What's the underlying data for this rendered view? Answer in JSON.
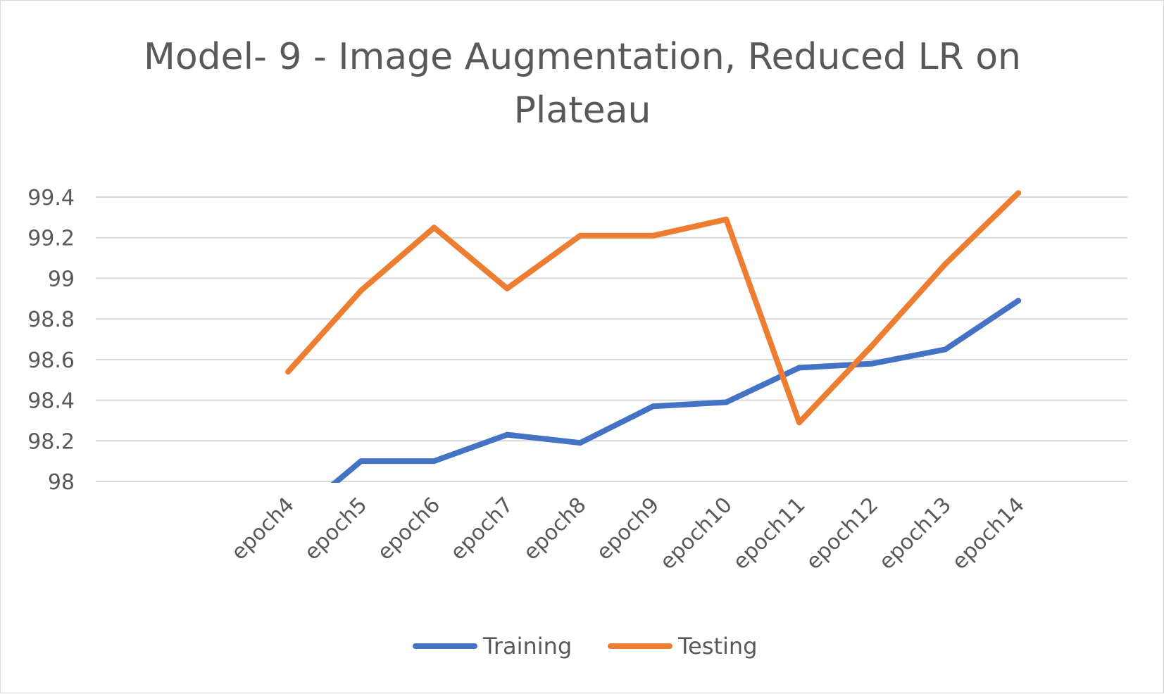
{
  "chart_data": {
    "type": "line",
    "title": "Model- 9 - Image Augmentation, Reduced LR on Plateau",
    "title_lines": [
      "Model- 9 - Image Augmentation, Reduced LR on",
      "Plateau"
    ],
    "xlabel": "",
    "ylabel": "",
    "categories": [
      "",
      "",
      "",
      "epoch4",
      "epoch5",
      "epoch6",
      "epoch7",
      "epoch8",
      "epoch9",
      "epoch10",
      "epoch11",
      "epoch12",
      "epoch13",
      "epoch14"
    ],
    "ylim": [
      98,
      99.4
    ],
    "yticks": [
      "98",
      "98.2",
      "98.4",
      "98.6",
      "98.8",
      "99",
      "99.2",
      "99.4"
    ],
    "ytick_values": [
      98,
      98.2,
      98.4,
      98.6,
      98.8,
      99,
      99.2,
      99.4
    ],
    "grid": true,
    "legend_position": "bottom",
    "series": [
      {
        "name": "Training",
        "color": "#4472C4",
        "values": [
          null,
          null,
          null,
          97.8,
          98.1,
          98.1,
          98.23,
          98.19,
          98.37,
          98.39,
          98.56,
          98.58,
          98.65,
          98.89
        ]
      },
      {
        "name": "Testing",
        "color": "#ED7D31",
        "values": [
          null,
          null,
          null,
          98.54,
          98.94,
          99.25,
          98.95,
          99.21,
          99.21,
          99.29,
          98.29,
          98.67,
          99.07,
          99.42
        ]
      }
    ]
  }
}
